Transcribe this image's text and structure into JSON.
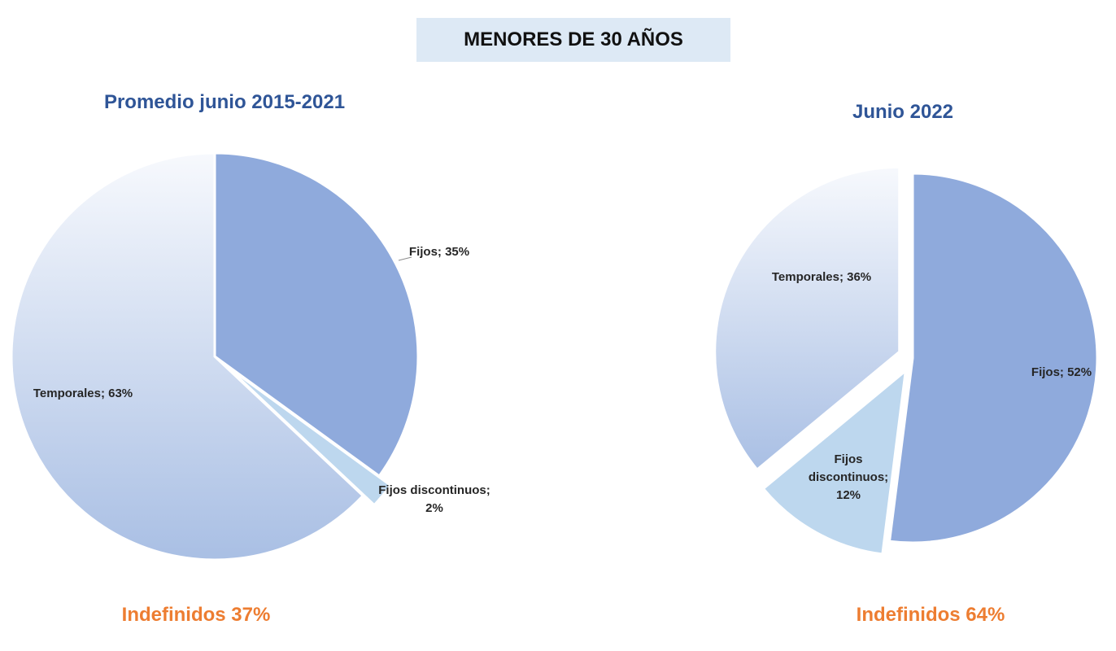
{
  "header": {
    "title": "MENORES DE 30 AÑOS"
  },
  "colors": {
    "fijos": "#8faadc",
    "fijos_discontinuos": "#bdd7ee",
    "temporales_light": "#f7f9fd",
    "temporales_dark": "#a9bfe4",
    "title_blue": "#2f5597",
    "footer_orange": "#ed7d31",
    "header_bg": "#dde9f5"
  },
  "chart_data": [
    {
      "type": "pie",
      "title": "Promedio junio 2015-2021",
      "footer": "Indefinidos 37%",
      "categories": [
        "Fijos",
        "Fijos discontinuos",
        "Temporales"
      ],
      "values": [
        35,
        2,
        63
      ],
      "labels": [
        [
          "Fijos; 35%"
        ],
        [
          "Fijos discontinuos;",
          "2%"
        ],
        [
          "Temporales; 63%"
        ]
      ]
    },
    {
      "type": "pie",
      "title": "Junio 2022",
      "footer": "Indefinidos 64%",
      "categories": [
        "Fijos",
        "Fijos discontinuos",
        "Temporales"
      ],
      "values": [
        52,
        12,
        36
      ],
      "labels": [
        [
          "Fijos; 52%"
        ],
        [
          "Fijos",
          "discontinuos;",
          "12%"
        ],
        [
          "Temporales; 36%"
        ]
      ]
    }
  ]
}
